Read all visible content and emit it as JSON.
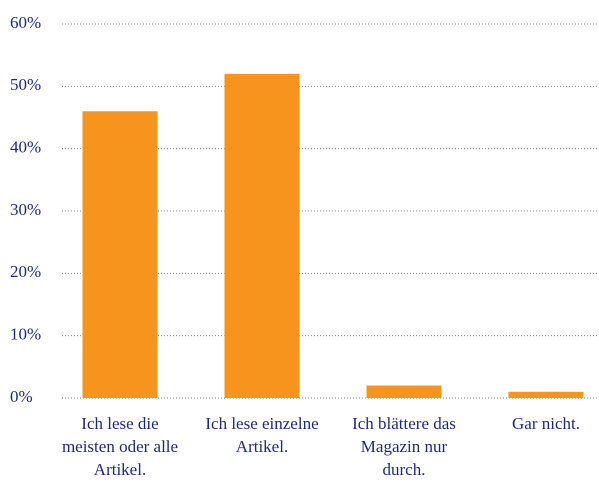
{
  "chart_data": {
    "type": "bar",
    "categories": [
      "Ich lese die meisten oder alle Artikel.",
      "Ich lese einzelne Artikel.",
      "Ich blättere das Magazin nur durch.",
      "Gar nicht."
    ],
    "values": [
      46,
      52,
      2,
      1
    ],
    "color": "#f7941d",
    "ylim": [
      0,
      60
    ],
    "yticks": [
      {
        "value": 0,
        "label": "0%"
      },
      {
        "value": 10,
        "label": "10%"
      },
      {
        "value": 20,
        "label": "20%"
      },
      {
        "value": 30,
        "label": "30%"
      },
      {
        "value": 40,
        "label": "40%"
      },
      {
        "value": 50,
        "label": "50%"
      },
      {
        "value": 60,
        "label": "60%"
      }
    ],
    "grid": true
  }
}
